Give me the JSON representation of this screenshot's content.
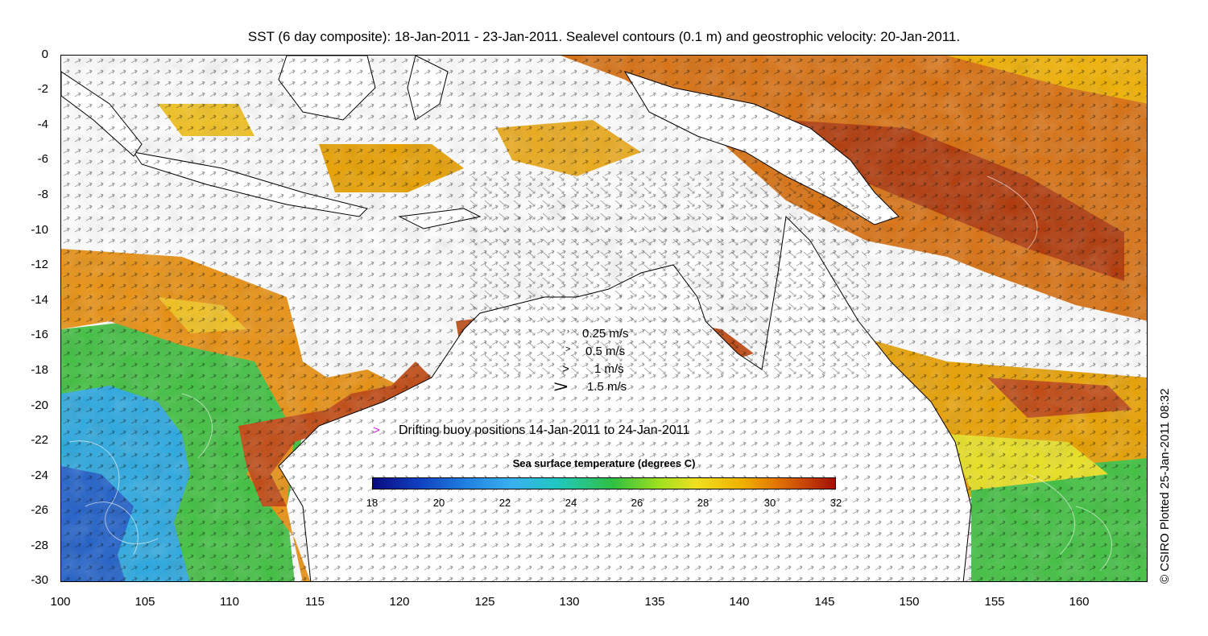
{
  "title": "SST (6 day composite): 18-Jan-2011 - 23-Jan-2011. Sealevel contours (0.1 m) and geostrophic velocity: 20-Jan-2011.",
  "y_axis": {
    "ticks": [
      "0",
      "-2",
      "-4",
      "-6",
      "-8",
      "-10",
      "-12",
      "-14",
      "-16",
      "-18",
      "-20",
      "-22",
      "-24",
      "-26",
      "-28",
      "-30"
    ]
  },
  "x_axis": {
    "ticks": [
      "100",
      "105",
      "110",
      "115",
      "120",
      "125",
      "130",
      "135",
      "140",
      "145",
      "150",
      "155",
      "160"
    ]
  },
  "velocity_legend": [
    "0.25 m/s",
    "0.5 m/s",
    "1 m/s",
    "1.5 m/s"
  ],
  "buoy_legend": {
    "symbol": ">",
    "label": "Drifting buoy positions 14-Jan-2011 to 24-Jan-2011",
    "color": "#cc22cc"
  },
  "colorbar": {
    "title": "Sea surface temperature (degrees C)",
    "labels": [
      "18",
      "20",
      "22",
      "24",
      "26",
      "28",
      "30",
      "32"
    ],
    "min": 18,
    "max": 32
  },
  "credit": "© CSIRO Plotted 25-Jan-2011 08:32",
  "colors": {
    "sst_18": "#0a0a80",
    "sst_22": "#3aa0e8",
    "sst_25": "#22c040",
    "sst_27": "#e8e020",
    "sst_29": "#f0a000",
    "sst_31": "#c84008",
    "sst_32": "#a01000",
    "land": "#ffffff",
    "coast": "#000000"
  },
  "chart_data": {
    "type": "heatmap",
    "title": "SST (6 day composite): 18-Jan-2011 - 23-Jan-2011. Sealevel contours (0.1 m) and geostrophic velocity: 20-Jan-2011.",
    "xlim": [
      100,
      164
    ],
    "ylim": [
      -30,
      0
    ],
    "colorbar_range": [
      18,
      32
    ],
    "grid": false
  }
}
